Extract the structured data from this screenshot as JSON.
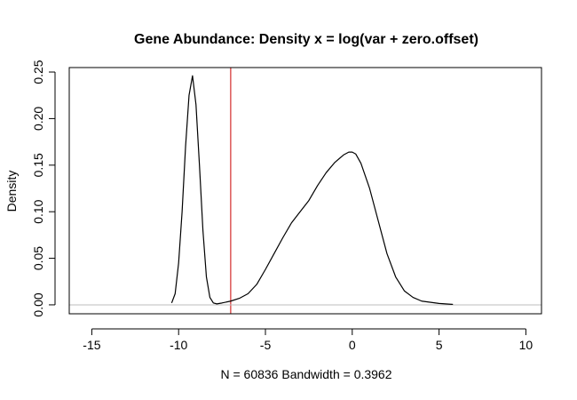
{
  "chart_data": {
    "type": "line",
    "title": "Gene Abundance: Density x = log(var + zero.offset)",
    "xlabel": "N = 60836   Bandwidth = 0.3962",
    "ylabel": "Density",
    "xlim": [
      -16.3,
      10.9
    ],
    "ylim": [
      -0.0096,
      0.2548
    ],
    "x_ticks": [
      -15,
      -10,
      -5,
      0,
      5,
      10
    ],
    "x_tick_labels": [
      "-15",
      "-10",
      "-5",
      "0",
      "5",
      "10"
    ],
    "y_ticks": [
      0.0,
      0.05,
      0.1,
      0.15,
      0.2,
      0.25
    ],
    "y_tick_labels": [
      "0.00",
      "0.05",
      "0.10",
      "0.15",
      "0.20",
      "0.25"
    ],
    "grid": false,
    "series": [
      {
        "color": "#000000",
        "x": [
          -10.4,
          -10.2,
          -10.0,
          -9.8,
          -9.6,
          -9.4,
          -9.2,
          -9.0,
          -8.8,
          -8.6,
          -8.4,
          -8.2,
          -8.0,
          -7.8,
          -7.5,
          -7.0,
          -6.5,
          -6.0,
          -5.5,
          -5.0,
          -4.5,
          -4.0,
          -3.5,
          -3.0,
          -2.5,
          -2.0,
          -1.5,
          -1.0,
          -0.5,
          -0.2,
          0.0,
          0.2,
          0.5,
          1.0,
          1.5,
          2.0,
          2.5,
          3.0,
          3.5,
          4.0,
          5.0,
          5.8
        ],
        "y": [
          0.002,
          0.012,
          0.045,
          0.1,
          0.17,
          0.225,
          0.246,
          0.215,
          0.15,
          0.08,
          0.03,
          0.008,
          0.002,
          0.001,
          0.002,
          0.004,
          0.007,
          0.012,
          0.022,
          0.038,
          0.055,
          0.072,
          0.088,
          0.1,
          0.112,
          0.128,
          0.142,
          0.153,
          0.161,
          0.164,
          0.164,
          0.162,
          0.152,
          0.125,
          0.09,
          0.055,
          0.03,
          0.015,
          0.008,
          0.004,
          0.0015,
          0.0005
        ]
      }
    ],
    "reference_lines": [
      {
        "orientation": "vertical",
        "x": -7.0,
        "color": "#cc0000"
      },
      {
        "orientation": "horizontal",
        "y": 0,
        "color": "#bebebe"
      }
    ]
  }
}
